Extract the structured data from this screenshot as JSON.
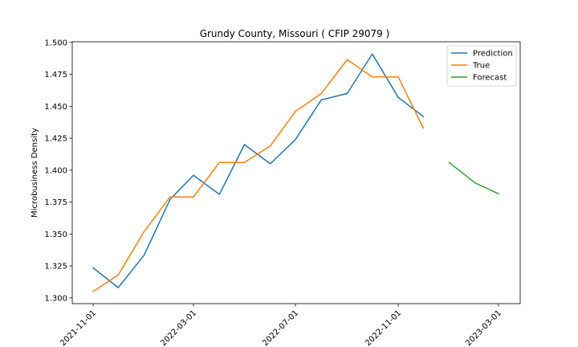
{
  "chart_data": {
    "type": "line",
    "title": "Grundy County, Missouri ( CFIP 29079 )",
    "xlabel": "",
    "ylabel": "Microbusiness Density",
    "xlim": [
      "2021-10-07",
      "2023-03-27"
    ],
    "ylim": [
      1.2955,
      1.5005
    ],
    "x_ticks": [
      "2021-11-01",
      "2022-03-01",
      "2022-07-01",
      "2022-11-01",
      "2023-03-01"
    ],
    "y_ticks": [
      "1.300",
      "1.325",
      "1.350",
      "1.375",
      "1.400",
      "1.425",
      "1.450",
      "1.475",
      "1.500"
    ],
    "legend_position": "top-right",
    "grid": false,
    "series": [
      {
        "name": "Prediction",
        "color": "#1f77b4",
        "x": [
          "2021-11-01",
          "2021-12-01",
          "2022-01-01",
          "2022-02-01",
          "2022-03-01",
          "2022-04-01",
          "2022-05-01",
          "2022-06-01",
          "2022-07-01",
          "2022-08-01",
          "2022-09-01",
          "2022-10-01",
          "2022-11-01",
          "2022-12-01"
        ],
        "values": [
          1.3235,
          1.308,
          1.3335,
          1.377,
          1.396,
          1.381,
          1.42,
          1.405,
          1.424,
          1.455,
          1.46,
          1.491,
          1.457,
          1.442
        ]
      },
      {
        "name": "True",
        "color": "#ff7f0e",
        "x": [
          "2021-11-01",
          "2021-12-01",
          "2022-01-01",
          "2022-02-01",
          "2022-03-01",
          "2022-04-01",
          "2022-05-01",
          "2022-06-01",
          "2022-07-01",
          "2022-08-01",
          "2022-09-01",
          "2022-10-01",
          "2022-11-01",
          "2022-12-01"
        ],
        "values": [
          1.305,
          1.318,
          1.352,
          1.379,
          1.379,
          1.406,
          1.406,
          1.419,
          1.446,
          1.46,
          1.4865,
          1.473,
          1.473,
          1.433
        ]
      },
      {
        "name": "Forecast",
        "color": "#2ca02c",
        "x": [
          "2023-01-01",
          "2023-02-01",
          "2023-03-01"
        ],
        "values": [
          1.406,
          1.39,
          1.3815
        ]
      }
    ]
  }
}
